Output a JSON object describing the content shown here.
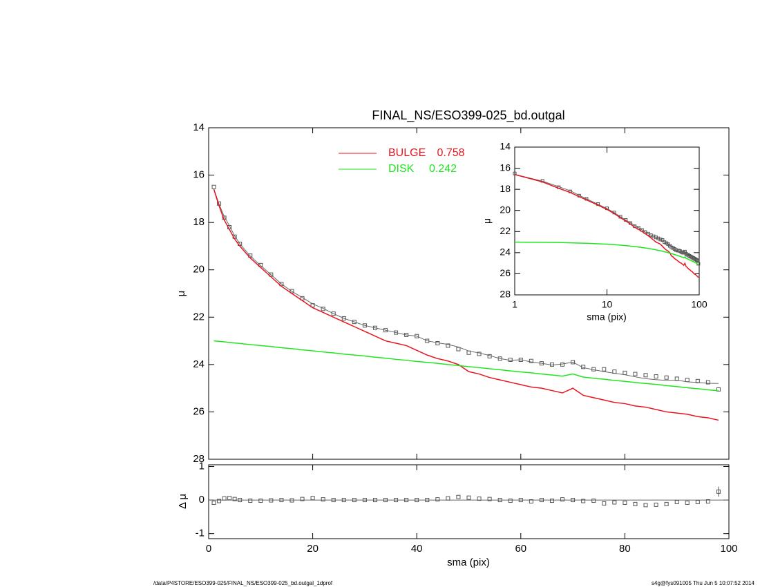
{
  "chart_data": [
    {
      "type": "line",
      "title": "FINAL_NS/ESO399-025_bd.outgal",
      "ylabel": "μ",
      "x": [
        1,
        2,
        3,
        4,
        5,
        6,
        8,
        10,
        12,
        14,
        16,
        18,
        20,
        22,
        24,
        26,
        28,
        30,
        32,
        34,
        36,
        38,
        40,
        42,
        44,
        46,
        48,
        50,
        52,
        54,
        56,
        58,
        60,
        62,
        64,
        66,
        68,
        70,
        72,
        74,
        76,
        78,
        80,
        82,
        84,
        86,
        88,
        90,
        92,
        94,
        96,
        98
      ],
      "series": [
        {
          "color": "#555555",
          "marker": "square",
          "values": [
            16.5,
            17.2,
            17.8,
            18.2,
            18.6,
            18.9,
            19.4,
            19.8,
            20.2,
            20.6,
            20.9,
            21.2,
            21.5,
            21.65,
            21.85,
            22.05,
            22.2,
            22.35,
            22.45,
            22.55,
            22.65,
            22.75,
            22.8,
            23.0,
            23.1,
            23.2,
            23.35,
            23.5,
            23.55,
            23.65,
            23.75,
            23.8,
            23.8,
            23.85,
            23.95,
            24.0,
            24.0,
            23.9,
            24.1,
            24.2,
            24.2,
            24.3,
            24.35,
            24.4,
            24.45,
            24.5,
            24.55,
            24.6,
            24.65,
            24.7,
            24.75,
            25.05
          ]
        },
        {
          "color": "#666666",
          "values": [
            16.58,
            17.23,
            17.75,
            18.14,
            18.57,
            18.9,
            19.42,
            19.82,
            20.21,
            20.6,
            20.91,
            21.17,
            21.44,
            21.63,
            21.85,
            22.05,
            22.2,
            22.35,
            22.45,
            22.55,
            22.65,
            22.75,
            22.8,
            23.0,
            23.08,
            23.15,
            23.26,
            23.43,
            23.51,
            23.62,
            23.75,
            23.82,
            23.8,
            23.89,
            23.95,
            24.02,
            23.98,
            23.9,
            24.13,
            24.22,
            24.3,
            24.37,
            24.43,
            24.52,
            24.6,
            24.64,
            24.67,
            24.66,
            24.73,
            24.76,
            24.79,
            24.8
          ]
        },
        {
          "name": "BULGE",
          "fraction": 0.758,
          "color": "#e8141e",
          "values": [
            16.6,
            17.3,
            17.9,
            18.3,
            18.7,
            19.0,
            19.5,
            19.9,
            20.3,
            20.7,
            21.0,
            21.3,
            21.6,
            21.8,
            22.0,
            22.2,
            22.4,
            22.6,
            22.8,
            23.0,
            23.1,
            23.2,
            23.4,
            23.6,
            23.75,
            23.85,
            24.0,
            24.3,
            24.4,
            24.55,
            24.65,
            24.75,
            24.85,
            24.95,
            25.0,
            25.1,
            25.2,
            25.0,
            25.3,
            25.4,
            25.5,
            25.6,
            25.65,
            25.75,
            25.8,
            25.9,
            26.0,
            26.05,
            26.1,
            26.2,
            26.25,
            26.35
          ]
        },
        {
          "name": "DISK",
          "fraction": 0.242,
          "color": "#1ee61e",
          "values": [
            23.0,
            23.02,
            23.04,
            23.07,
            23.09,
            23.11,
            23.16,
            23.2,
            23.24,
            23.29,
            23.33,
            23.38,
            23.42,
            23.47,
            23.51,
            23.56,
            23.6,
            23.64,
            23.69,
            23.73,
            23.78,
            23.82,
            23.87,
            23.91,
            23.95,
            24.0,
            24.04,
            24.09,
            24.13,
            24.18,
            24.22,
            24.27,
            24.31,
            24.35,
            24.4,
            24.44,
            24.49,
            24.4,
            24.53,
            24.58,
            24.62,
            24.67,
            24.71,
            24.76,
            24.8,
            24.84,
            24.89,
            24.93,
            24.98,
            25.02,
            25.07,
            25.11
          ]
        }
      ],
      "xlim": [
        0,
        100
      ],
      "xticks": [
        0,
        20,
        40,
        60,
        80,
        100
      ],
      "ylim": [
        14,
        28
      ],
      "yticks": [
        14,
        16,
        18,
        20,
        22,
        24,
        26,
        28
      ],
      "y_inverted": true
    },
    {
      "type": "scatter",
      "xlabel": "sma (pix)",
      "ylabel": "Δ μ",
      "x": [
        1,
        2,
        3,
        4,
        5,
        6,
        8,
        10,
        12,
        14,
        16,
        18,
        20,
        22,
        24,
        26,
        28,
        30,
        32,
        34,
        36,
        38,
        40,
        42,
        44,
        46,
        48,
        50,
        52,
        54,
        56,
        58,
        60,
        62,
        64,
        66,
        68,
        70,
        72,
        74,
        76,
        78,
        80,
        82,
        84,
        86,
        88,
        90,
        92,
        94,
        96,
        98
      ],
      "values": [
        -0.08,
        -0.03,
        0.05,
        0.06,
        0.03,
        0.0,
        -0.02,
        -0.02,
        -0.01,
        0.0,
        -0.01,
        0.03,
        0.06,
        0.02,
        0.0,
        0.0,
        0.0,
        0.0,
        0.0,
        0.0,
        0.0,
        0.0,
        0.0,
        0.0,
        0.02,
        0.05,
        0.09,
        0.07,
        0.04,
        0.03,
        0.0,
        -0.02,
        0.0,
        -0.04,
        0.0,
        -0.02,
        0.02,
        0.0,
        -0.03,
        -0.02,
        -0.1,
        -0.07,
        -0.08,
        -0.12,
        -0.15,
        -0.14,
        -0.12,
        -0.06,
        -0.08,
        -0.06,
        -0.04,
        0.25
      ],
      "errors": [
        null,
        null,
        null,
        null,
        null,
        null,
        null,
        null,
        null,
        null,
        null,
        null,
        null,
        null,
        null,
        null,
        null,
        null,
        null,
        null,
        null,
        null,
        null,
        null,
        null,
        null,
        null,
        null,
        null,
        null,
        null,
        null,
        null,
        null,
        null,
        null,
        null,
        null,
        null,
        null,
        null,
        null,
        null,
        null,
        null,
        null,
        null,
        null,
        null,
        null,
        null,
        0.15
      ],
      "color": "#555555",
      "hline": 0,
      "xlim": [
        0,
        100
      ],
      "xticks": [
        0,
        20,
        40,
        60,
        80,
        100
      ],
      "ylim": [
        -1.15,
        1.05
      ],
      "yticks": [
        -1,
        0,
        1
      ]
    },
    {
      "type": "line",
      "xlabel": "sma (pix)",
      "ylabel": "μ",
      "log_x": true,
      "xlim": [
        1,
        100
      ],
      "xticks": [
        1,
        10,
        100
      ],
      "ylim": [
        14,
        28
      ],
      "yticks": [
        14,
        16,
        18,
        20,
        22,
        24,
        26,
        28
      ],
      "y_inverted": true
    }
  ],
  "footer": {
    "left": "/data/P4STORE/ESO399-025/FINAL_NS/ESO399-025_bd.outgal_1dprof",
    "right": "s4g@fys091005  Thu Jun  5 10:07:52 2014"
  }
}
